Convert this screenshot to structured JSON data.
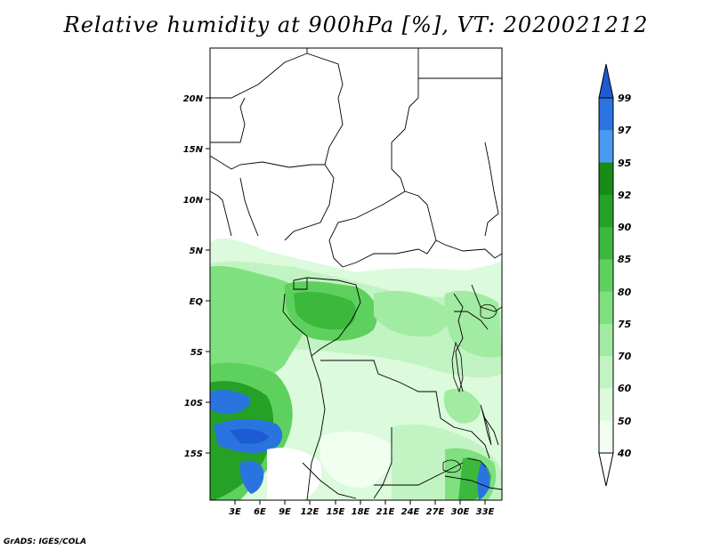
{
  "title": "Relative humidity at 900hPa [%], VT: 2020021212",
  "footer": "GrADS: IGES/COLA",
  "map": {
    "lat_labels": [
      "20N",
      "15N",
      "10N",
      "5N",
      "EQ",
      "5S",
      "10S",
      "15S"
    ],
    "lon_labels": [
      "3E",
      "6E",
      "9E",
      "12E",
      "15E",
      "18E",
      "21E",
      "24E",
      "27E",
      "30E",
      "33E"
    ]
  },
  "colorbar": {
    "levels": [
      "99",
      "97",
      "95",
      "92",
      "90",
      "85",
      "80",
      "75",
      "70",
      "60",
      "50",
      "40"
    ],
    "colors": [
      "#1c5bd4",
      "#2a74e0",
      "#4a9af0",
      "#178b17",
      "#25a125",
      "#3cb83c",
      "#5ed05e",
      "#7fe07f",
      "#a2eba2",
      "#c2f3c2",
      "#dcfadc",
      "#f1fff1",
      "#ffffff"
    ]
  }
}
